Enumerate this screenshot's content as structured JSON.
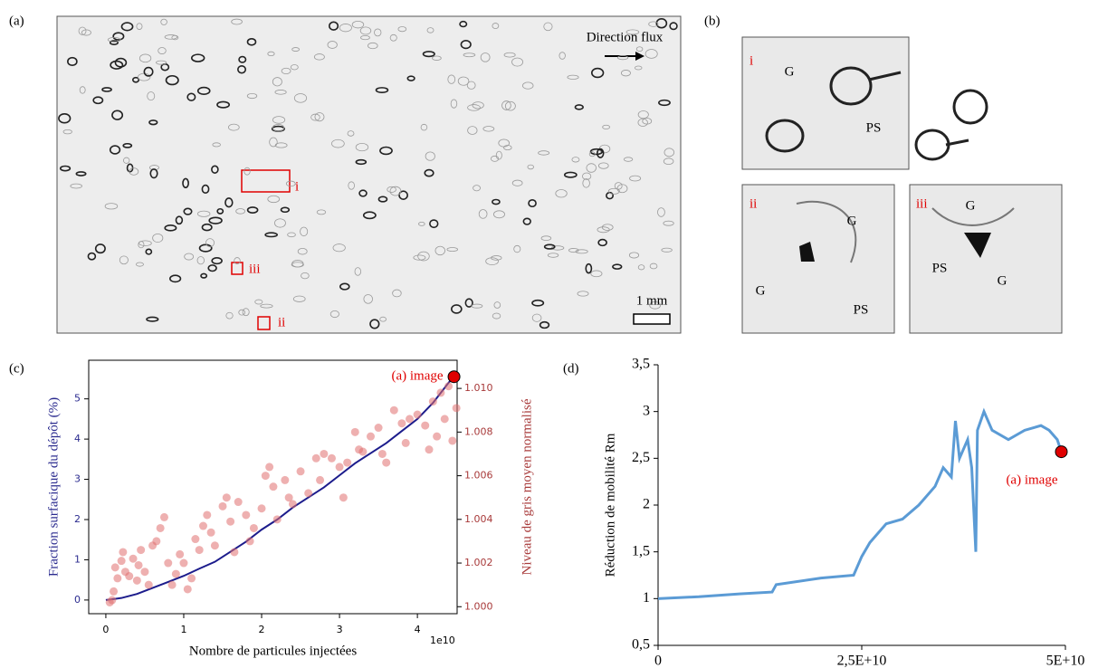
{
  "panels": {
    "a": {
      "label": "(a)",
      "flow": "Direction flux",
      "regions": [
        "i",
        "iii",
        "ii"
      ],
      "scale": "1 mm"
    },
    "b": {
      "label": "(b)",
      "insets": [
        {
          "label": "i",
          "phases": [
            "G",
            "PS"
          ]
        },
        {
          "label": "ii",
          "phases": [
            "G",
            "G",
            "PS"
          ]
        },
        {
          "label": "iii",
          "phases": [
            "G",
            "PS",
            "G"
          ]
        }
      ]
    },
    "c": {
      "label": "(c)"
    },
    "d": {
      "label": "(d)"
    }
  },
  "chart_data": [
    {
      "type": "line",
      "frame": true,
      "x_label": "Nombre de particules injectées",
      "x_offset_label": "1e10",
      "y_label": "Fraction surfacique du dépôt (%)",
      "y_label_color": "#2b2b8f",
      "y2_label": "Niveau de gris moyen normalisé",
      "y2_label_color": "#a83a3a",
      "xlim": [
        -2200000000.0,
        45100000000.0
      ],
      "ylim": [
        -0.34,
        5.96
      ],
      "y2lim": [
        0.99968,
        1.01129
      ],
      "xticks": [
        0,
        {
          "value": 10000000000.0,
          "label": "1"
        },
        {
          "value": 20000000000.0,
          "label": "2"
        },
        {
          "value": 30000000000.0,
          "label": "3"
        },
        {
          "value": 40000000000.0,
          "label": "4"
        }
      ],
      "yticks": [
        0,
        1,
        2,
        3,
        4,
        5
      ],
      "y2ticks": [
        {
          "value": 1.0,
          "label": "1.000"
        },
        {
          "value": 1.002,
          "label": "1.002"
        },
        {
          "value": 1.004,
          "label": "1.004"
        },
        {
          "value": 1.006,
          "label": "1.006"
        },
        {
          "value": 1.008,
          "label": "1.008"
        },
        {
          "value": 1.01,
          "label": "1.010"
        }
      ],
      "series": [
        {
          "type": "line",
          "color": "#1c1c8c",
          "x": [
            0,
            2000000000.0,
            4000000000.0,
            6000000000.0,
            8000000000.0,
            10000000000.0,
            12000000000.0,
            14000000000.0,
            16000000000.0,
            18000000000.0,
            20000000000.0,
            22000000000.0,
            24000000000.0,
            26000000000.0,
            28000000000.0,
            30000000000.0,
            32000000000.0,
            34000000000.0,
            36000000000.0,
            38000000000.0,
            40000000000.0,
            42000000000.0,
            44000000000.0,
            44700000000.0
          ],
          "values": [
            0,
            0.05,
            0.15,
            0.3,
            0.45,
            0.6,
            0.78,
            0.95,
            1.2,
            1.45,
            1.75,
            2.0,
            2.3,
            2.55,
            2.8,
            3.1,
            3.4,
            3.65,
            3.9,
            4.2,
            4.5,
            4.9,
            5.4,
            5.55
          ]
        },
        {
          "type": "scatter",
          "axis": "y2",
          "color": "#e07070",
          "x": [
            500000000.0,
            800000000.0,
            1000000000.0,
            1200000000.0,
            1500000000.0,
            2000000000.0,
            2200000000.0,
            2500000000.0,
            3000000000.0,
            3500000000.0,
            4000000000.0,
            4200000000.0,
            4500000000.0,
            5000000000.0,
            5500000000.0,
            6000000000.0,
            6500000000.0,
            7000000000.0,
            7500000000.0,
            8000000000.0,
            8500000000.0,
            9000000000.0,
            9500000000.0,
            10000000000.0,
            10500000000.0,
            11000000000.0,
            11500000000.0,
            12000000000.0,
            12500000000.0,
            13000000000.0,
            13500000000.0,
            14000000000.0,
            15000000000.0,
            15500000000.0,
            16000000000.0,
            16500000000.0,
            17000000000.0,
            18000000000.0,
            18500000000.0,
            19000000000.0,
            20000000000.0,
            20500000000.0,
            21000000000.0,
            21500000000.0,
            22000000000.0,
            23000000000.0,
            23500000000.0,
            24000000000.0,
            25000000000.0,
            26000000000.0,
            27000000000.0,
            27500000000.0,
            28000000000.0,
            29000000000.0,
            30000000000.0,
            30500000000.0,
            31000000000.0,
            32000000000.0,
            32500000000.0,
            33000000000.0,
            34000000000.0,
            35000000000.0,
            35500000000.0,
            36000000000.0,
            37000000000.0,
            38000000000.0,
            38500000000.0,
            39000000000.0,
            40000000000.0,
            41000000000.0,
            41500000000.0,
            42000000000.0,
            42500000000.0,
            43000000000.0,
            43500000000.0,
            44000000000.0,
            44500000000.0,
            45000000000.0
          ],
          "values": [
            1.0002,
            1.0003,
            1.0007,
            1.0018,
            1.0013,
            1.0021,
            1.0025,
            1.0016,
            1.0014,
            1.0022,
            1.0012,
            1.0019,
            1.0026,
            1.0016,
            1.001,
            1.0028,
            1.003,
            1.0036,
            1.0041,
            1.002,
            1.001,
            1.0015,
            1.0024,
            1.002,
            1.0008,
            1.0013,
            1.0031,
            1.0026,
            1.0037,
            1.0042,
            1.0034,
            1.0028,
            1.0046,
            1.005,
            1.0039,
            1.0025,
            1.0048,
            1.0042,
            1.003,
            1.0036,
            1.0045,
            1.006,
            1.0064,
            1.0055,
            1.004,
            1.0058,
            1.005,
            1.0047,
            1.0062,
            1.0052,
            1.0068,
            1.0058,
            1.007,
            1.0068,
            1.0064,
            1.005,
            1.0066,
            1.008,
            1.0072,
            1.0071,
            1.0078,
            1.0082,
            1.007,
            1.0066,
            1.009,
            1.0084,
            1.0075,
            1.0086,
            1.0088,
            1.0083,
            1.0072,
            1.0094,
            1.0078,
            1.0098,
            1.0086,
            1.0101,
            1.0076,
            1.0091
          ]
        }
      ],
      "annotation": {
        "text": "(a) image",
        "x": 44700000000.0,
        "y": 5.55,
        "color": "#e00000"
      }
    },
    {
      "type": "line",
      "frame": false,
      "x_label": "Nombre de particules injectées",
      "y_label": "Réduction de mobilité Rm",
      "xlim": [
        0,
        50000000000.0
      ],
      "ylim": [
        0.5,
        3.5
      ],
      "xticks": [
        0,
        {
          "value": 25000000000.0,
          "label": "2,5E+10"
        },
        {
          "value": 50000000000.0,
          "label": "5E+10"
        }
      ],
      "yticks": [
        {
          "value": 0.5,
          "label": "0,5"
        },
        1,
        {
          "value": 1.5,
          "label": "1,5"
        },
        2,
        {
          "value": 2.5,
          "label": "2,5"
        },
        3,
        {
          "value": 3.5,
          "label": "3,5"
        }
      ],
      "series": [
        {
          "type": "line",
          "color": "#5b9bd5",
          "x": [
            0,
            5000000000.0,
            10000000000.0,
            14000000000.0,
            14500000000.0,
            20000000000.0,
            24000000000.0,
            25000000000.0,
            26000000000.0,
            28000000000.0,
            30000000000.0,
            32000000000.0,
            34000000000.0,
            35000000000.0,
            36000000000.0,
            36500000000.0,
            37000000000.0,
            38000000000.0,
            38500000000.0,
            39000000000.0,
            39200000000.0,
            40000000000.0,
            41000000000.0,
            43000000000.0,
            45000000000.0,
            47000000000.0,
            48000000000.0,
            49000000000.0,
            49500000000.0
          ],
          "values": [
            1.0,
            1.02,
            1.05,
            1.07,
            1.15,
            1.22,
            1.25,
            1.45,
            1.6,
            1.8,
            1.85,
            2.0,
            2.2,
            2.4,
            2.3,
            2.9,
            2.5,
            2.7,
            2.4,
            1.5,
            2.8,
            3.0,
            2.8,
            2.7,
            2.8,
            2.85,
            2.8,
            2.7,
            2.57
          ]
        }
      ],
      "annotation": {
        "text": "(a) image",
        "x": 49500000000.0,
        "y": 2.57,
        "color": "#e00000"
      }
    }
  ]
}
